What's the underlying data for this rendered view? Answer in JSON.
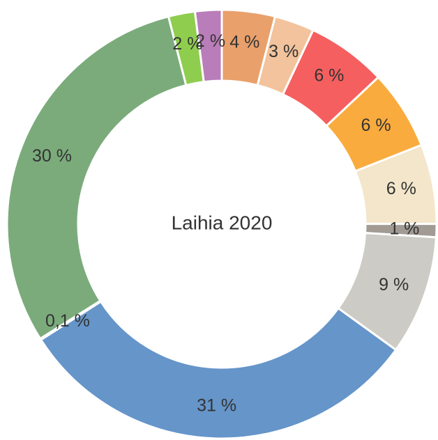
{
  "chart_data": {
    "type": "pie",
    "title": "Laihia 2020",
    "values": [
      4,
      3,
      6,
      6,
      6,
      1,
      9,
      31,
      0.1,
      30,
      2,
      2
    ],
    "value_labels": [
      "4 %",
      "3 %",
      "6 %",
      "6 %",
      "6 %",
      "1 %",
      "9 %",
      "31 %",
      "0,1 %",
      "30 %",
      "2 %",
      "2 %"
    ],
    "colors": [
      "#e9a06b",
      "#f2c39c",
      "#f65f5f",
      "#f9ab3d",
      "#f3e6ca",
      "#a19b94",
      "#cdcbc5",
      "#6595c9",
      "#9ab0d6",
      "#7bab7b",
      "#8fcd4f",
      "#b97db9"
    ]
  }
}
